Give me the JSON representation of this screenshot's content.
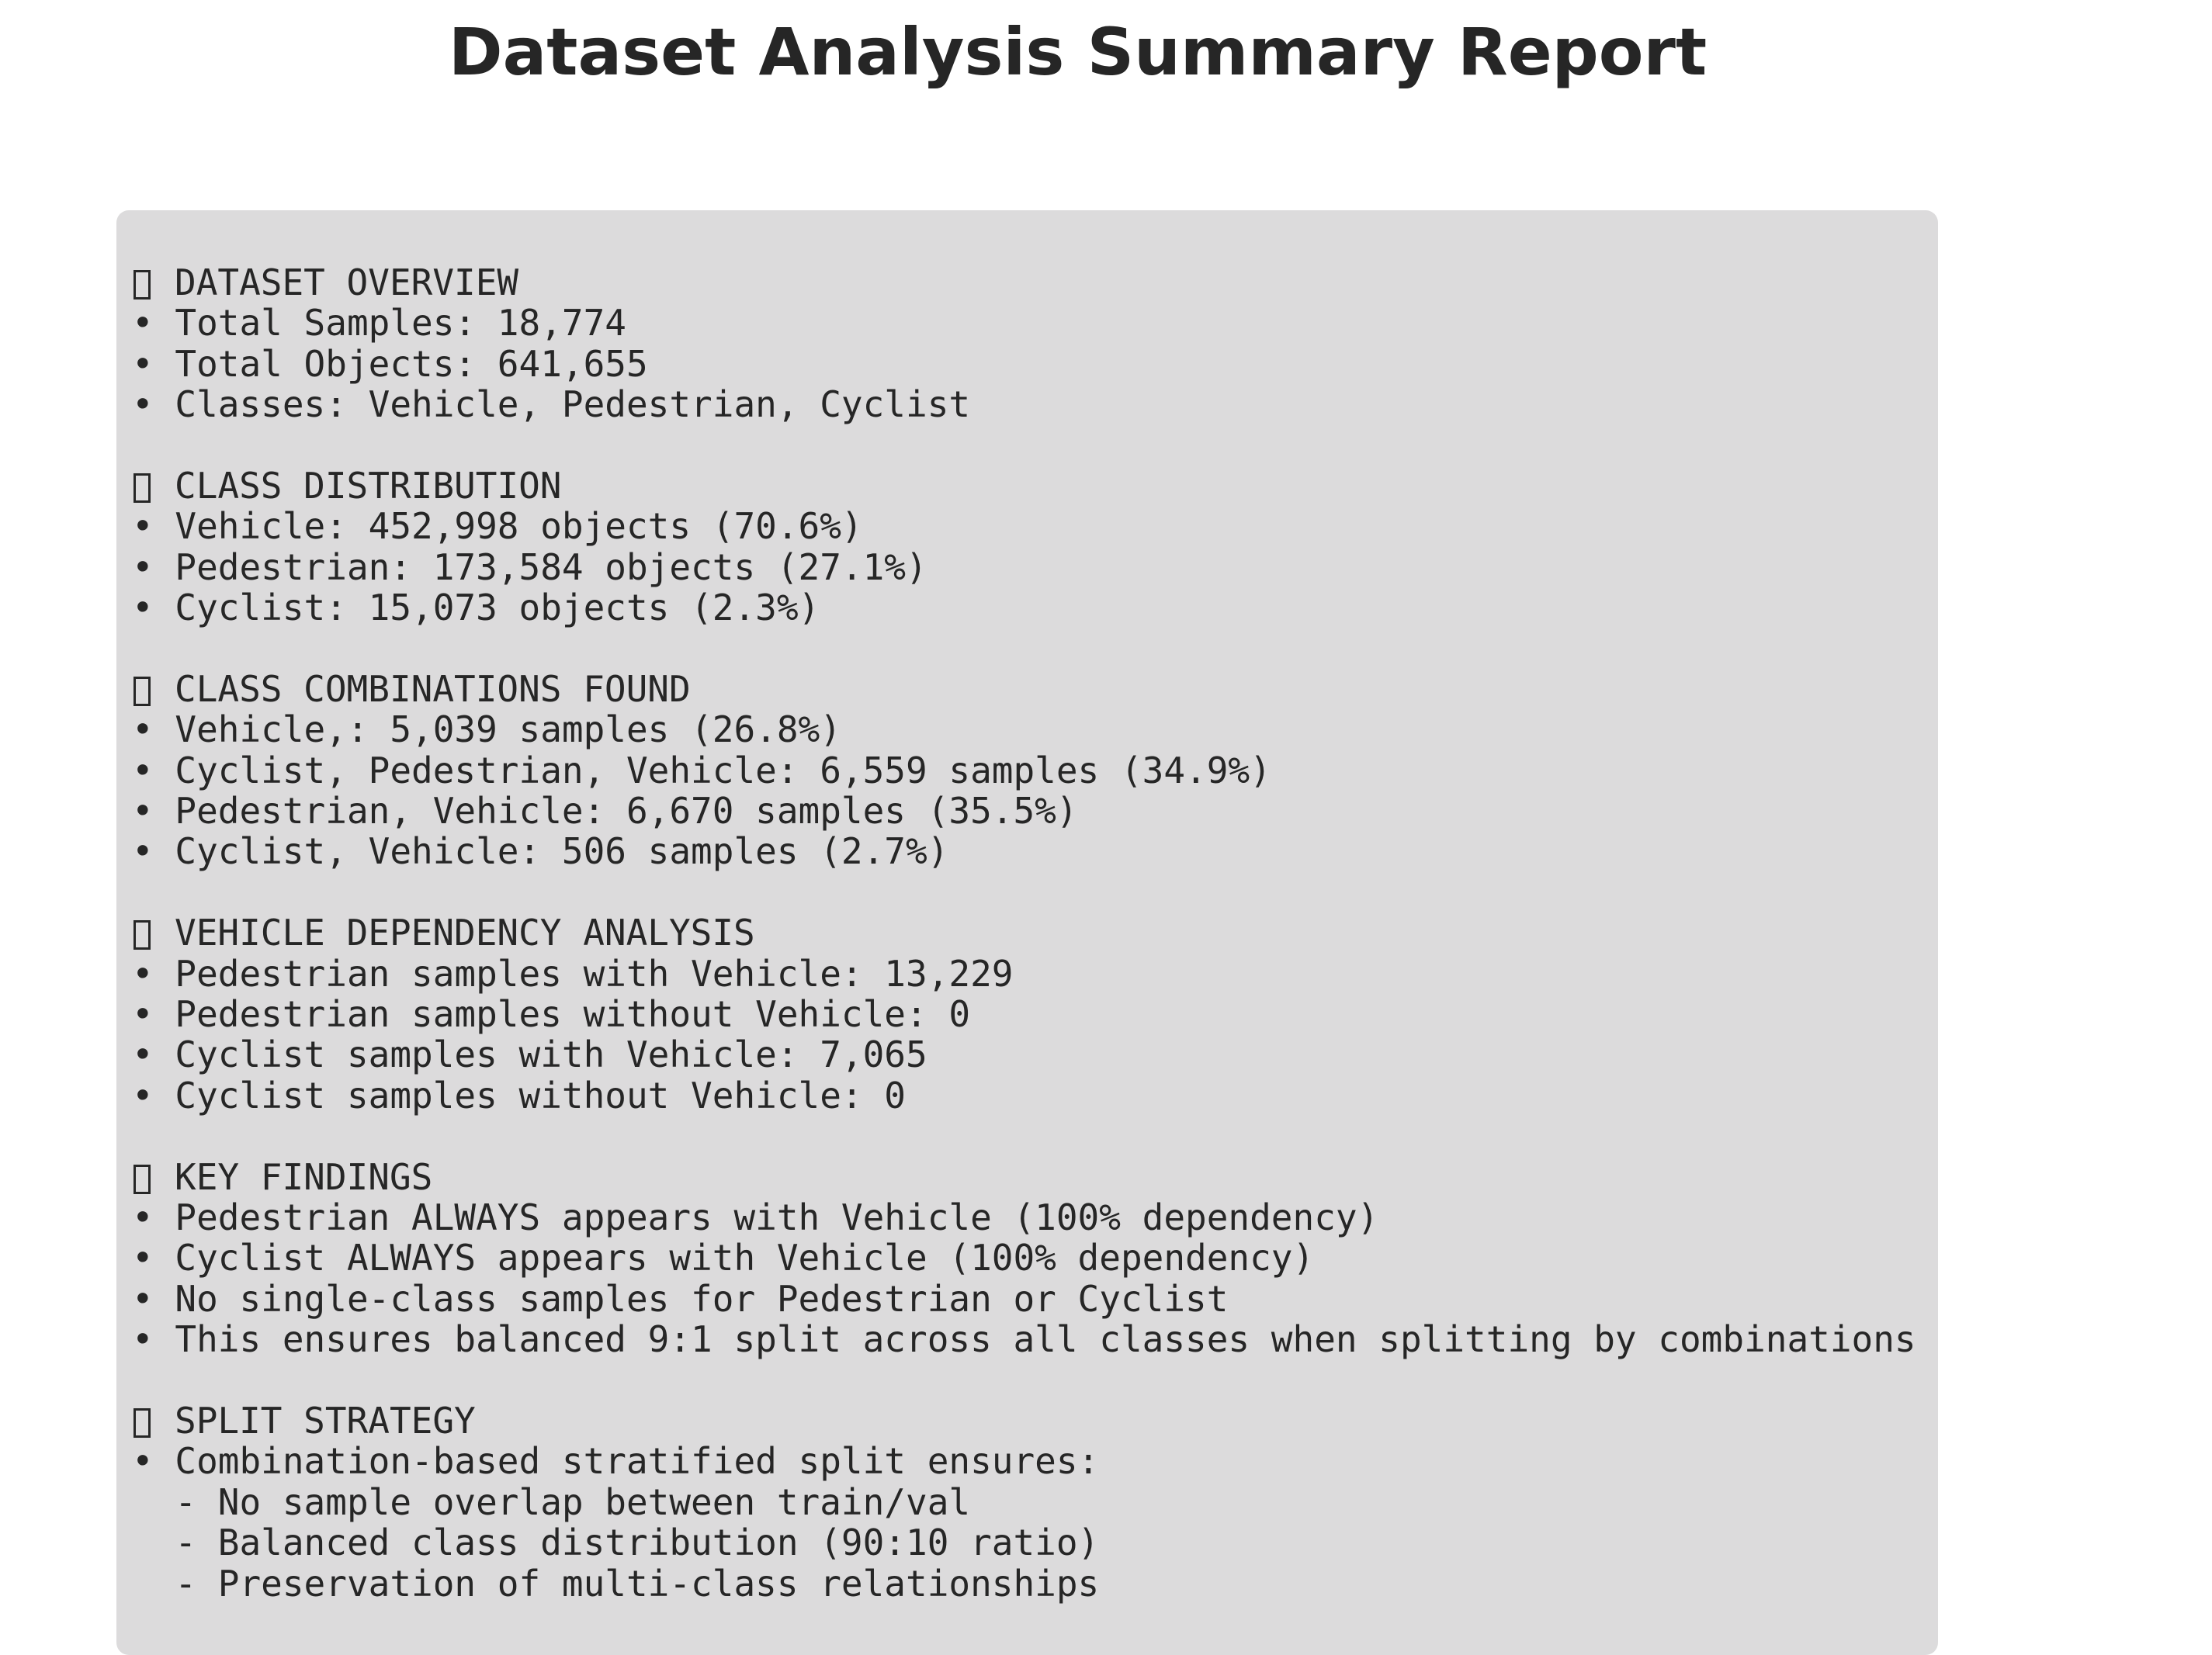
{
  "title": "Dataset Analysis Summary Report",
  "sections": [
    {
      "icon": "missing-glyph-icon",
      "heading": "DATASET OVERVIEW",
      "lines": [
        "• Total Samples: 18,774",
        "• Total Objects: 641,655",
        "• Classes: Vehicle, Pedestrian, Cyclist"
      ]
    },
    {
      "icon": "missing-glyph-icon",
      "heading": "CLASS DISTRIBUTION",
      "lines": [
        "• Vehicle: 452,998 objects (70.6%)",
        "• Pedestrian: 173,584 objects (27.1%)",
        "• Cyclist: 15,073 objects (2.3%)"
      ]
    },
    {
      "icon": "missing-glyph-icon",
      "heading": "CLASS COMBINATIONS FOUND",
      "lines": [
        "• Vehicle,: 5,039 samples (26.8%)",
        "• Cyclist, Pedestrian, Vehicle: 6,559 samples (34.9%)",
        "• Pedestrian, Vehicle: 6,670 samples (35.5%)",
        "• Cyclist, Vehicle: 506 samples (2.7%)"
      ]
    },
    {
      "icon": "missing-glyph-icon",
      "heading": "VEHICLE DEPENDENCY ANALYSIS",
      "lines": [
        "• Pedestrian samples with Vehicle: 13,229",
        "• Pedestrian samples without Vehicle: 0",
        "• Cyclist samples with Vehicle: 7,065",
        "• Cyclist samples without Vehicle: 0"
      ]
    },
    {
      "icon": "missing-glyph-icon",
      "heading": "KEY FINDINGS",
      "lines": [
        "• Pedestrian ALWAYS appears with Vehicle (100% dependency)",
        "• Cyclist ALWAYS appears with Vehicle (100% dependency)",
        "• No single-class samples for Pedestrian or Cyclist",
        "• This ensures balanced 9:1 split across all classes when splitting by combinations"
      ]
    },
    {
      "icon": "missing-glyph-icon",
      "heading": "SPLIT STRATEGY",
      "lines": [
        "• Combination-based stratified split ensures:",
        "  - No sample overlap between train/val",
        "  - Balanced class distribution (90:10 ratio)",
        "  - Preservation of multi-class relationships"
      ]
    }
  ]
}
